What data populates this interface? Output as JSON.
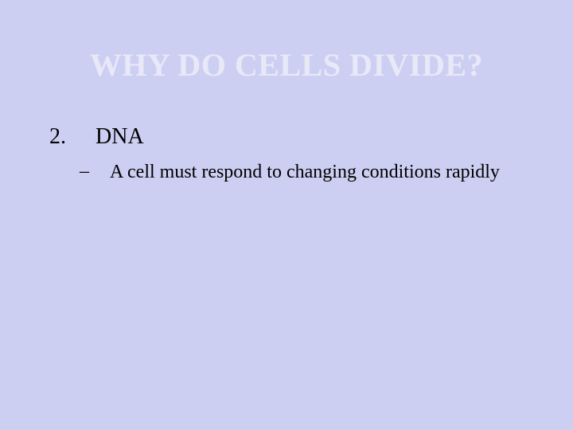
{
  "slide": {
    "background_color": "#cccff2",
    "title": {
      "text": "WHY DO CELLS DIVIDE?",
      "color": "#e8e8f8",
      "font_size_pt": 40,
      "font_weight": "bold",
      "font_family": "Times New Roman"
    },
    "list_item": {
      "number": "2.",
      "text": "DNA",
      "font_size_pt": 28,
      "color": "#000000"
    },
    "sub_item": {
      "marker": "–",
      "text": "A cell must respond to changing conditions rapidly",
      "font_size_pt": 24,
      "color": "#000000"
    }
  }
}
